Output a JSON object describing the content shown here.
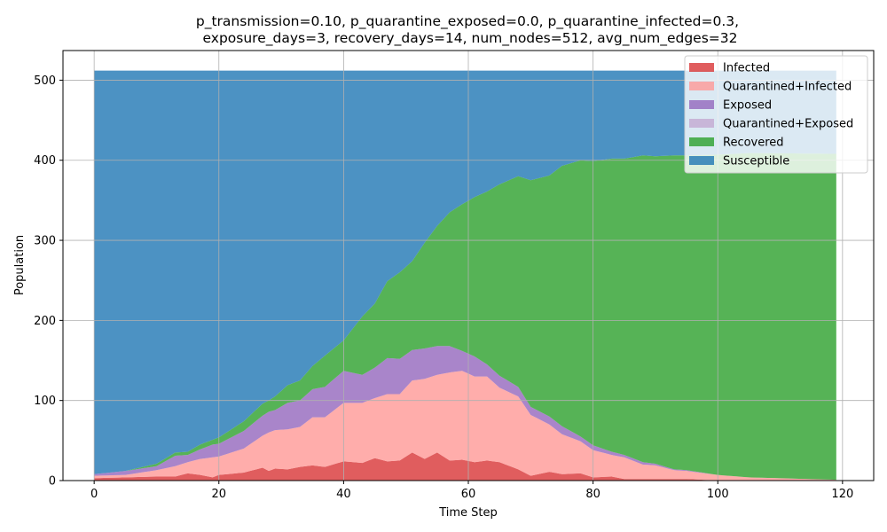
{
  "chart_data": {
    "type": "area",
    "title_lines": [
      "p_transmission=0.10, p_quarantine_exposed=0.0, p_quarantine_infected=0.3,",
      "exposure_days=3, recovery_days=14, num_nodes=512, avg_num_edges=32"
    ],
    "xlabel": "Time Step",
    "ylabel": "Population",
    "xlim": [
      -5,
      125
    ],
    "ylim": [
      0,
      537
    ],
    "xticks": [
      0,
      20,
      40,
      60,
      80,
      100,
      120
    ],
    "yticks": [
      0,
      100,
      200,
      300,
      400,
      500
    ],
    "grid": true,
    "stacked": true,
    "legend_position": "top-right",
    "total": 512,
    "series": [
      {
        "name": "Infected",
        "color": "#d62728",
        "opacity": 0.75,
        "x": [
          0,
          5,
          10,
          13,
          15,
          17,
          19,
          20,
          24,
          27,
          28,
          29,
          31,
          33,
          35,
          37,
          40,
          43,
          45,
          47,
          49,
          51,
          53,
          55,
          57,
          59,
          61,
          63,
          65,
          68,
          70,
          73,
          75,
          78,
          80,
          83,
          85,
          88,
          90,
          93,
          95,
          100,
          105,
          119
        ],
        "values": [
          3,
          4,
          5,
          5,
          9,
          7,
          4,
          7,
          10,
          16,
          12,
          15,
          14,
          17,
          19,
          17,
          24,
          22,
          28,
          24,
          25,
          35,
          27,
          35,
          25,
          26,
          23,
          25,
          23,
          14,
          6,
          11,
          8,
          9,
          4,
          5,
          2,
          2,
          2,
          2,
          2,
          0,
          0,
          0
        ]
      },
      {
        "name": "Quarantined+Infected",
        "color": "#ff9896",
        "opacity": 0.8,
        "x": [
          0,
          5,
          10,
          13,
          15,
          17,
          19,
          20,
          24,
          27,
          28,
          29,
          31,
          33,
          35,
          37,
          40,
          43,
          45,
          47,
          49,
          51,
          53,
          55,
          57,
          59,
          61,
          63,
          65,
          68,
          70,
          73,
          75,
          78,
          80,
          83,
          85,
          88,
          90,
          93,
          95,
          100,
          105,
          119
        ],
        "values": [
          3,
          3,
          8,
          13,
          14,
          20,
          25,
          23,
          30,
          40,
          48,
          48,
          50,
          50,
          60,
          62,
          73,
          75,
          75,
          84,
          83,
          90,
          100,
          97,
          110,
          111,
          107,
          105,
          93,
          91,
          76,
          59,
          50,
          40,
          34,
          27,
          27,
          18,
          17,
          11,
          10,
          7,
          4,
          1
        ]
      },
      {
        "name": "Exposed",
        "color": "#9467bd",
        "opacity": 0.8,
        "x": [
          0,
          5,
          10,
          13,
          15,
          17,
          19,
          20,
          24,
          27,
          28,
          29,
          31,
          33,
          35,
          37,
          40,
          43,
          45,
          47,
          49,
          51,
          53,
          55,
          57,
          59,
          61,
          63,
          65,
          68,
          70,
          73,
          75,
          78,
          80,
          83,
          85,
          88,
          90,
          93,
          95,
          100,
          105,
          119
        ],
        "values": [
          2,
          5,
          5,
          13,
          9,
          12,
          16,
          16,
          22,
          25,
          26,
          25,
          33,
          33,
          35,
          38,
          40,
          35,
          38,
          45,
          44,
          38,
          38,
          36,
          33,
          25,
          25,
          15,
          15,
          12,
          10,
          10,
          10,
          6,
          6,
          4,
          3,
          3,
          2,
          1,
          1,
          0,
          0,
          0
        ]
      },
      {
        "name": "Quarantined+Exposed",
        "color": "#c5b0d5",
        "opacity": 0.9,
        "x": [
          0,
          119
        ],
        "values": [
          0,
          0
        ]
      },
      {
        "name": "Recovered",
        "color": "#2ca02c",
        "opacity": 0.8,
        "x": [
          0,
          5,
          10,
          13,
          15,
          17,
          19,
          20,
          24,
          27,
          28,
          29,
          31,
          33,
          35,
          37,
          40,
          43,
          45,
          47,
          49,
          51,
          53,
          55,
          57,
          59,
          61,
          63,
          65,
          68,
          70,
          73,
          75,
          78,
          80,
          83,
          85,
          88,
          90,
          93,
          95,
          100,
          105,
          119
        ],
        "values": [
          0,
          0,
          3,
          4,
          4,
          6,
          6,
          8,
          12,
          15,
          14,
          17,
          22,
          25,
          29,
          39,
          38,
          73,
          80,
          96,
          108,
          111,
          132,
          150,
          167,
          183,
          199,
          216,
          239,
          263,
          283,
          301,
          325,
          345,
          355,
          366,
          370,
          383,
          384,
          392,
          393,
          400,
          405,
          407
        ]
      },
      {
        "name": "Susceptible",
        "color": "#1f77b4",
        "opacity": 0.8,
        "x": [
          0,
          119
        ],
        "values": [
          512,
          512
        ],
        "fill_to_total": true
      }
    ]
  }
}
